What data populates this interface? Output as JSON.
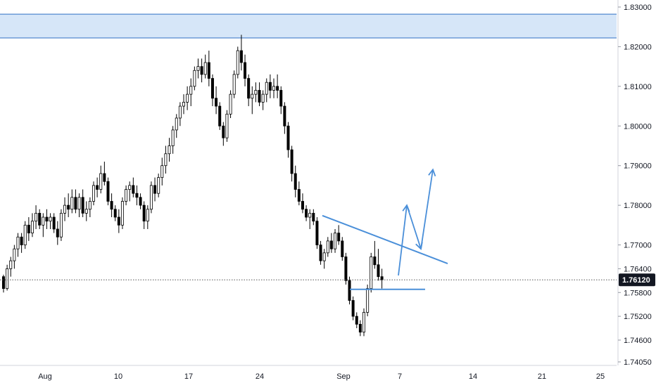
{
  "chart_data": {
    "type": "candlestick",
    "instrument_price_axis": "right",
    "x_tick_labels": [
      "Aug",
      "10",
      "17",
      "24",
      "Sep",
      "7",
      "14",
      "21",
      "25"
    ],
    "y_tick_labels": [
      "1.83000",
      "1.82000",
      "1.81000",
      "1.80000",
      "1.79000",
      "1.78000",
      "1.77000",
      "1.76400",
      "1.75800",
      "1.75200",
      "1.74600",
      "1.74050"
    ],
    "ylim": [
      1.7405,
      1.833
    ],
    "current_price": {
      "label": "1.76120",
      "value": 1.7612
    },
    "colors": {
      "up": "#ffffff",
      "down": "#000000",
      "wick": "#000000",
      "drawing": "#4a8fd9",
      "zone_fill": "#d6e6f8",
      "zone_border": "#2f6fc4",
      "price_badge_bg": "#131722",
      "price_badge_text": "#ffffff"
    },
    "resistance_zone": {
      "low": 1.8222,
      "high": 1.8282
    },
    "drawings": {
      "descending_trendline": [
        {
          "x": 458,
          "y": 1.7774
        },
        {
          "x": 636,
          "y": 1.7653
        }
      ],
      "support_line": {
        "value": 1.7588,
        "from_x": 497,
        "to_x": 604
      },
      "projected_path": [
        {
          "x": 566,
          "y": 1.7623
        },
        {
          "x": 578,
          "y": 1.78
        },
        {
          "x": 598,
          "y": 1.769
        },
        {
          "x": 615,
          "y": 1.789
        }
      ]
    },
    "candles": [
      [
        1.762,
        1.7625,
        1.758,
        1.759
      ],
      [
        1.759,
        1.765,
        1.7585,
        1.764
      ],
      [
        1.764,
        1.767,
        1.762,
        1.766
      ],
      [
        1.766,
        1.77,
        1.764,
        1.769
      ],
      [
        1.769,
        1.773,
        1.767,
        1.772
      ],
      [
        1.772,
        1.773,
        1.768,
        1.77
      ],
      [
        1.77,
        1.776,
        1.769,
        1.775
      ],
      [
        1.775,
        1.777,
        1.771,
        1.773
      ],
      [
        1.773,
        1.778,
        1.772,
        1.776
      ],
      [
        1.776,
        1.78,
        1.774,
        1.778
      ],
      [
        1.778,
        1.779,
        1.774,
        1.775
      ],
      [
        1.775,
        1.778,
        1.772,
        1.777
      ],
      [
        1.777,
        1.779,
        1.774,
        1.776
      ],
      [
        1.776,
        1.778,
        1.774,
        1.777
      ],
      [
        1.777,
        1.778,
        1.773,
        1.774
      ],
      [
        1.774,
        1.776,
        1.77,
        1.772
      ],
      [
        1.772,
        1.779,
        1.771,
        1.778
      ],
      [
        1.778,
        1.782,
        1.776,
        1.78
      ],
      [
        1.78,
        1.783,
        1.777,
        1.779
      ],
      [
        1.779,
        1.784,
        1.778,
        1.782
      ],
      [
        1.782,
        1.784,
        1.778,
        1.779
      ],
      [
        1.779,
        1.783,
        1.777,
        1.782
      ],
      [
        1.782,
        1.784,
        1.777,
        1.778
      ],
      [
        1.778,
        1.781,
        1.776,
        1.779
      ],
      [
        1.779,
        1.782,
        1.777,
        1.781
      ],
      [
        1.781,
        1.786,
        1.78,
        1.785
      ],
      [
        1.785,
        1.787,
        1.782,
        1.784
      ],
      [
        1.784,
        1.79,
        1.783,
        1.788
      ],
      [
        1.788,
        1.791,
        1.785,
        1.786
      ],
      [
        1.786,
        1.787,
        1.78,
        1.781
      ],
      [
        1.781,
        1.783,
        1.777,
        1.779
      ],
      [
        1.779,
        1.78,
        1.776,
        1.777
      ],
      [
        1.777,
        1.779,
        1.773,
        1.775
      ],
      [
        1.775,
        1.782,
        1.774,
        1.781
      ],
      [
        1.781,
        1.785,
        1.78,
        1.784
      ],
      [
        1.784,
        1.786,
        1.781,
        1.785
      ],
      [
        1.785,
        1.787,
        1.782,
        1.783
      ],
      [
        1.783,
        1.785,
        1.78,
        1.782
      ],
      [
        1.782,
        1.783,
        1.779,
        1.78
      ],
      [
        1.78,
        1.781,
        1.774,
        1.776
      ],
      [
        1.776,
        1.78,
        1.774,
        1.779
      ],
      [
        1.779,
        1.786,
        1.778,
        1.785
      ],
      [
        1.785,
        1.787,
        1.781,
        1.783
      ],
      [
        1.783,
        1.788,
        1.782,
        1.787
      ],
      [
        1.787,
        1.792,
        1.785,
        1.79
      ],
      [
        1.79,
        1.795,
        1.788,
        1.793
      ],
      [
        1.793,
        1.797,
        1.791,
        1.795
      ],
      [
        1.795,
        1.8,
        1.793,
        1.799
      ],
      [
        1.799,
        1.803,
        1.797,
        1.802
      ],
      [
        1.802,
        1.806,
        1.8,
        1.805
      ],
      [
        1.805,
        1.808,
        1.803,
        1.806
      ],
      [
        1.806,
        1.81,
        1.804,
        1.808
      ],
      [
        1.808,
        1.812,
        1.805,
        1.81
      ],
      [
        1.81,
        1.815,
        1.809,
        1.814
      ],
      [
        1.814,
        1.817,
        1.812,
        1.815
      ],
      [
        1.815,
        1.817,
        1.811,
        1.813
      ],
      [
        1.813,
        1.818,
        1.812,
        1.816
      ],
      [
        1.816,
        1.819,
        1.81,
        1.812
      ],
      [
        1.812,
        1.813,
        1.805,
        1.807
      ],
      [
        1.807,
        1.81,
        1.803,
        1.805
      ],
      [
        1.805,
        1.806,
        1.799,
        1.8
      ],
      [
        1.8,
        1.801,
        1.795,
        1.797
      ],
      [
        1.797,
        1.804,
        1.796,
        1.803
      ],
      [
        1.803,
        1.809,
        1.802,
        1.808
      ],
      [
        1.808,
        1.814,
        1.807,
        1.813
      ],
      [
        1.813,
        1.82,
        1.812,
        1.819
      ],
      [
        1.819,
        1.823,
        1.814,
        1.816
      ],
      [
        1.816,
        1.818,
        1.81,
        1.812
      ],
      [
        1.812,
        1.813,
        1.805,
        1.807
      ],
      [
        1.807,
        1.81,
        1.803,
        1.808
      ],
      [
        1.808,
        1.811,
        1.806,
        1.809
      ],
      [
        1.809,
        1.811,
        1.805,
        1.806
      ],
      [
        1.806,
        1.809,
        1.804,
        1.808
      ],
      [
        1.808,
        1.812,
        1.806,
        1.811
      ],
      [
        1.811,
        1.813,
        1.807,
        1.809
      ],
      [
        1.809,
        1.812,
        1.807,
        1.81
      ],
      [
        1.81,
        1.813,
        1.807,
        1.809
      ],
      [
        1.809,
        1.81,
        1.803,
        1.805
      ],
      [
        1.805,
        1.806,
        1.798,
        1.8
      ],
      [
        1.8,
        1.801,
        1.792,
        1.794
      ],
      [
        1.794,
        1.795,
        1.786,
        1.788
      ],
      [
        1.788,
        1.79,
        1.782,
        1.784
      ],
      [
        1.784,
        1.786,
        1.78,
        1.781
      ],
      [
        1.781,
        1.783,
        1.778,
        1.779
      ],
      [
        1.779,
        1.78,
        1.776,
        1.777
      ],
      [
        1.777,
        1.779,
        1.774,
        1.778
      ],
      [
        1.778,
        1.779,
        1.775,
        1.776
      ],
      [
        1.776,
        1.777,
        1.769,
        1.77
      ],
      [
        1.77,
        1.771,
        1.765,
        1.766
      ],
      [
        1.766,
        1.769,
        1.764,
        1.768
      ],
      [
        1.768,
        1.772,
        1.767,
        1.771
      ],
      [
        1.771,
        1.773,
        1.768,
        1.769
      ],
      [
        1.769,
        1.774,
        1.768,
        1.773
      ],
      [
        1.773,
        1.775,
        1.77,
        1.771
      ],
      [
        1.771,
        1.772,
        1.766,
        1.767
      ],
      [
        1.767,
        1.768,
        1.76,
        1.761
      ],
      [
        1.761,
        1.762,
        1.755,
        1.756
      ],
      [
        1.756,
        1.757,
        1.751,
        1.752
      ],
      [
        1.752,
        1.753,
        1.749,
        1.75
      ],
      [
        1.75,
        1.751,
        1.747,
        1.748
      ],
      [
        1.748,
        1.754,
        1.747,
        1.753
      ],
      [
        1.753,
        1.76,
        1.752,
        1.759
      ],
      [
        1.759,
        1.768,
        1.758,
        1.767
      ],
      [
        1.767,
        1.771,
        1.764,
        1.765
      ],
      [
        1.765,
        1.769,
        1.761,
        1.762
      ],
      [
        1.762,
        1.764,
        1.759,
        1.7612
      ]
    ]
  }
}
